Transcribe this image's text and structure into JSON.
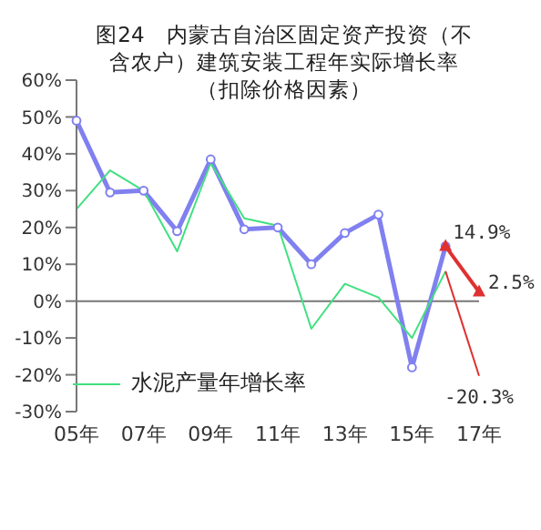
{
  "chart_data": {
    "type": "line",
    "title": "图24　内蒙古自治区固定资产投资（不含农户）建筑安装工程年实际增长率（扣除价格因素）",
    "categories": [
      "05年",
      null,
      "07年",
      null,
      "09年",
      null,
      "11年",
      null,
      "13年",
      null,
      "15年",
      null,
      "17年"
    ],
    "series": [
      {
        "color": "#8080f0",
        "marker": "circle",
        "values": [
          49,
          29.5,
          30,
          19,
          38.5,
          19.5,
          20,
          10,
          18.5,
          23.5,
          -18,
          14.9,
          null
        ]
      },
      {
        "name": "水泥产量年增长率",
        "color": "#40e080",
        "marker": "none",
        "values": [
          25,
          35.5,
          30,
          13.5,
          37.5,
          22.5,
          20.5,
          -7.5,
          4.7,
          1,
          -10,
          8.1,
          null
        ]
      },
      {
        "color": "#e03030",
        "marker": "triangle",
        "values": [
          null,
          null,
          null,
          null,
          null,
          null,
          null,
          null,
          null,
          null,
          null,
          14.9,
          2.5
        ],
        "value_labels": [
          null,
          null,
          null,
          null,
          null,
          null,
          null,
          null,
          null,
          null,
          null,
          "14.9%",
          "2.5%"
        ]
      },
      {
        "color": "#e03030",
        "marker": "none",
        "values": [
          null,
          null,
          null,
          null,
          null,
          null,
          null,
          null,
          null,
          null,
          null,
          8.1,
          -20.3
        ],
        "value_labels": [
          null,
          null,
          null,
          null,
          null,
          null,
          null,
          null,
          null,
          null,
          null,
          null,
          "-20.3%"
        ]
      }
    ],
    "ylim": [
      -30,
      60
    ],
    "yticks": [
      {
        "value": -30,
        "label": "-30%"
      },
      {
        "value": -20,
        "label": "-20%"
      },
      {
        "value": -10,
        "label": "-10%"
      },
      {
        "value": 0,
        "label": "0%"
      },
      {
        "value": 10,
        "label": "10%"
      },
      {
        "value": 20,
        "label": "20%"
      },
      {
        "value": 30,
        "label": "30%"
      },
      {
        "value": 40,
        "label": "40%"
      },
      {
        "value": 50,
        "label": "50%"
      },
      {
        "value": 60,
        "label": "60%"
      }
    ],
    "legend": "left"
  }
}
